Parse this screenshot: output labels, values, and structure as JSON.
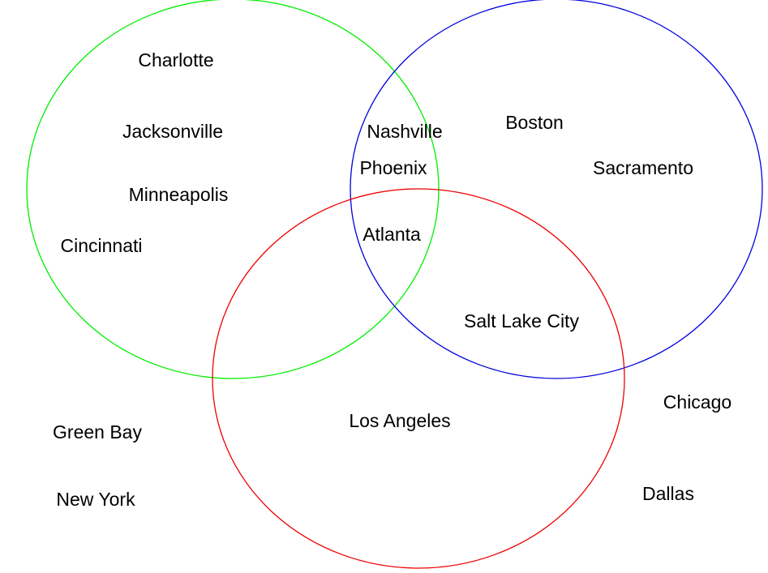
{
  "diagram": {
    "type": "venn",
    "sets": [
      {
        "id": "green",
        "color": "#00ee00"
      },
      {
        "id": "blue",
        "color": "#0000dd"
      },
      {
        "id": "red",
        "color": "#ee0000"
      }
    ],
    "items": [
      {
        "key": "charlotte",
        "label": "Charlotte",
        "sets": [
          "green"
        ]
      },
      {
        "key": "jacksonville",
        "label": "Jacksonville",
        "sets": [
          "green"
        ]
      },
      {
        "key": "minneapolis",
        "label": "Minneapolis",
        "sets": [
          "green"
        ]
      },
      {
        "key": "cincinnati",
        "label": "Cincinnati",
        "sets": [
          "green"
        ]
      },
      {
        "key": "nashville",
        "label": "Nashville",
        "sets": [
          "green",
          "blue"
        ]
      },
      {
        "key": "phoenix",
        "label": "Phoenix",
        "sets": [
          "green",
          "blue"
        ]
      },
      {
        "key": "atlanta",
        "label": "Atlanta",
        "sets": [
          "green",
          "blue",
          "red"
        ]
      },
      {
        "key": "boston",
        "label": "Boston",
        "sets": [
          "blue"
        ]
      },
      {
        "key": "sacramento",
        "label": "Sacramento",
        "sets": [
          "blue"
        ]
      },
      {
        "key": "salt-lake-city",
        "label": "Salt Lake City",
        "sets": [
          "blue",
          "red"
        ]
      },
      {
        "key": "los-angeles",
        "label": "Los Angeles",
        "sets": [
          "red"
        ]
      },
      {
        "key": "chicago",
        "label": "Chicago",
        "sets": []
      },
      {
        "key": "dallas",
        "label": "Dallas",
        "sets": []
      },
      {
        "key": "green-bay",
        "label": "Green Bay",
        "sets": []
      },
      {
        "key": "new-york",
        "label": "New York",
        "sets": []
      }
    ]
  }
}
